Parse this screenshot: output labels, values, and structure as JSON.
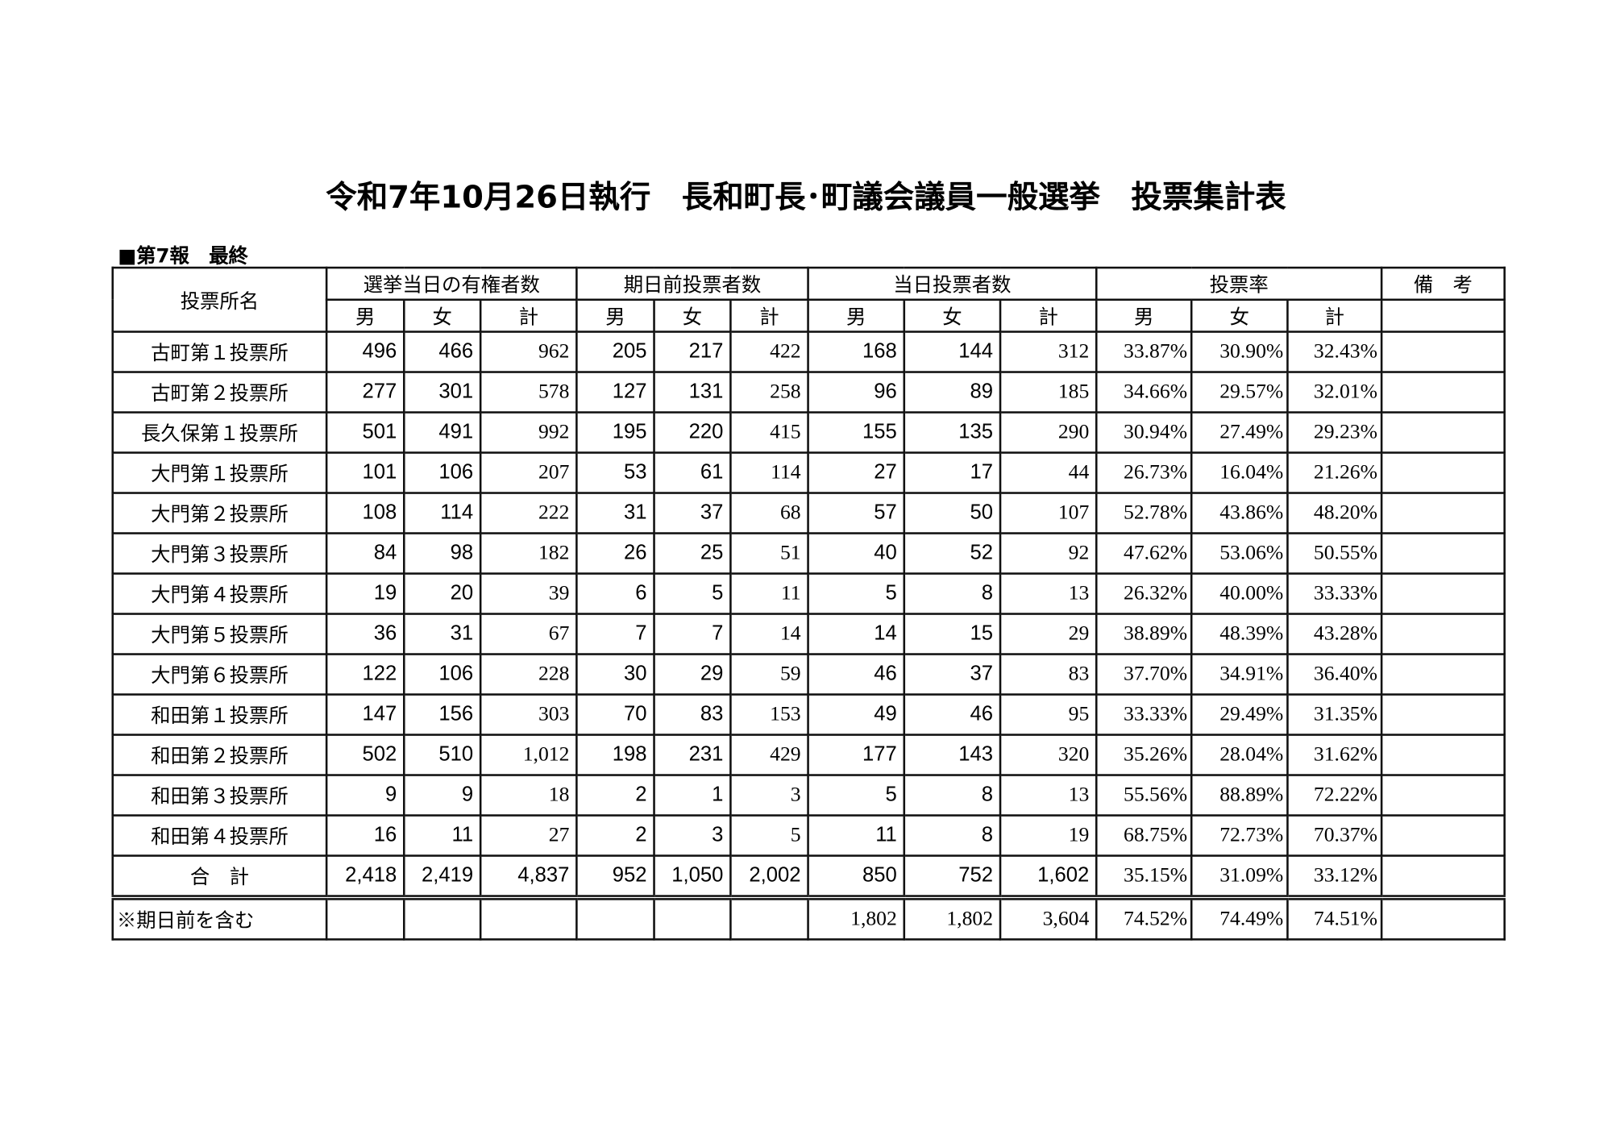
{
  "title": "令和7年10月26日執行　長和町長･町議会議員一般選挙　投票集計表",
  "report_label": "■第7報　最終",
  "header": {
    "station": "投票所名",
    "groups": [
      "選挙当日の有権者数",
      "期日前投票者数",
      "当日投票者数",
      "投票率",
      "備　考"
    ],
    "sub": [
      "男",
      "女",
      "計"
    ]
  },
  "rows": [
    {
      "name": "古町第１投票所",
      "voters": [
        "496",
        "466",
        "962"
      ],
      "early": [
        "205",
        "217",
        "422"
      ],
      "day": [
        "168",
        "144",
        "312"
      ],
      "rate": [
        "33.87%",
        "30.90%",
        "32.43%"
      ],
      "note": ""
    },
    {
      "name": "古町第２投票所",
      "voters": [
        "277",
        "301",
        "578"
      ],
      "early": [
        "127",
        "131",
        "258"
      ],
      "day": [
        "96",
        "89",
        "185"
      ],
      "rate": [
        "34.66%",
        "29.57%",
        "32.01%"
      ],
      "note": ""
    },
    {
      "name": "長久保第１投票所",
      "voters": [
        "501",
        "491",
        "992"
      ],
      "early": [
        "195",
        "220",
        "415"
      ],
      "day": [
        "155",
        "135",
        "290"
      ],
      "rate": [
        "30.94%",
        "27.49%",
        "29.23%"
      ],
      "note": ""
    },
    {
      "name": "大門第１投票所",
      "voters": [
        "101",
        "106",
        "207"
      ],
      "early": [
        "53",
        "61",
        "114"
      ],
      "day": [
        "27",
        "17",
        "44"
      ],
      "rate": [
        "26.73%",
        "16.04%",
        "21.26%"
      ],
      "note": ""
    },
    {
      "name": "大門第２投票所",
      "voters": [
        "108",
        "114",
        "222"
      ],
      "early": [
        "31",
        "37",
        "68"
      ],
      "day": [
        "57",
        "50",
        "107"
      ],
      "rate": [
        "52.78%",
        "43.86%",
        "48.20%"
      ],
      "note": ""
    },
    {
      "name": "大門第３投票所",
      "voters": [
        "84",
        "98",
        "182"
      ],
      "early": [
        "26",
        "25",
        "51"
      ],
      "day": [
        "40",
        "52",
        "92"
      ],
      "rate": [
        "47.62%",
        "53.06%",
        "50.55%"
      ],
      "note": ""
    },
    {
      "name": "大門第４投票所",
      "voters": [
        "19",
        "20",
        "39"
      ],
      "early": [
        "6",
        "5",
        "11"
      ],
      "day": [
        "5",
        "8",
        "13"
      ],
      "rate": [
        "26.32%",
        "40.00%",
        "33.33%"
      ],
      "note": ""
    },
    {
      "name": "大門第５投票所",
      "voters": [
        "36",
        "31",
        "67"
      ],
      "early": [
        "7",
        "7",
        "14"
      ],
      "day": [
        "14",
        "15",
        "29"
      ],
      "rate": [
        "38.89%",
        "48.39%",
        "43.28%"
      ],
      "note": ""
    },
    {
      "name": "大門第６投票所",
      "voters": [
        "122",
        "106",
        "228"
      ],
      "early": [
        "30",
        "29",
        "59"
      ],
      "day": [
        "46",
        "37",
        "83"
      ],
      "rate": [
        "37.70%",
        "34.91%",
        "36.40%"
      ],
      "note": ""
    },
    {
      "name": "和田第１投票所",
      "voters": [
        "147",
        "156",
        "303"
      ],
      "early": [
        "70",
        "83",
        "153"
      ],
      "day": [
        "49",
        "46",
        "95"
      ],
      "rate": [
        "33.33%",
        "29.49%",
        "31.35%"
      ],
      "note": ""
    },
    {
      "name": "和田第２投票所",
      "voters": [
        "502",
        "510",
        "1,012"
      ],
      "early": [
        "198",
        "231",
        "429"
      ],
      "day": [
        "177",
        "143",
        "320"
      ],
      "rate": [
        "35.26%",
        "28.04%",
        "31.62%"
      ],
      "note": ""
    },
    {
      "name": "和田第３投票所",
      "voters": [
        "9",
        "9",
        "18"
      ],
      "early": [
        "2",
        "1",
        "3"
      ],
      "day": [
        "5",
        "8",
        "13"
      ],
      "rate": [
        "55.56%",
        "88.89%",
        "72.22%"
      ],
      "note": ""
    },
    {
      "name": "和田第４投票所",
      "voters": [
        "16",
        "11",
        "27"
      ],
      "early": [
        "2",
        "3",
        "5"
      ],
      "day": [
        "11",
        "8",
        "19"
      ],
      "rate": [
        "68.75%",
        "72.73%",
        "70.37%"
      ],
      "note": ""
    }
  ],
  "total": {
    "name": "合　計",
    "voters": [
      "2,418",
      "2,419",
      "4,837"
    ],
    "early": [
      "952",
      "1,050",
      "2,002"
    ],
    "day": [
      "850",
      "752",
      "1,602"
    ],
    "rate": [
      "35.15%",
      "31.09%",
      "33.12%"
    ],
    "note": ""
  },
  "including_early": {
    "name": "※期日前を含む",
    "voters": [
      "",
      "",
      ""
    ],
    "early": [
      "",
      "",
      ""
    ],
    "day": [
      "1,802",
      "1,802",
      "3,604"
    ],
    "rate": [
      "74.52%",
      "74.49%",
      "74.51%"
    ],
    "note": ""
  }
}
